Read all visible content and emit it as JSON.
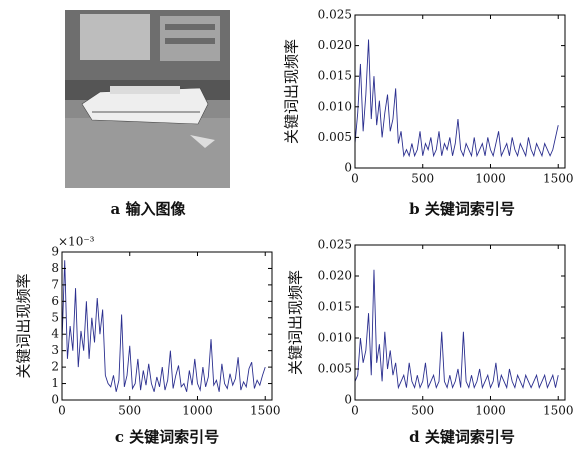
{
  "chart_data": [
    {
      "type": "image",
      "caption": "a 输入图像"
    },
    {
      "type": "line",
      "caption": "b 关键词索引号",
      "ylabel": "关键词出现频率",
      "xlim": [
        0,
        1550
      ],
      "xticks": [
        0,
        500,
        1000,
        1500
      ],
      "ylim": [
        0,
        0.025
      ],
      "yticks": [
        0,
        0.005,
        {
          "value": 0.01,
          "label": "0.010"
        },
        0.015,
        {
          "value": 0.02,
          "label": "0.020"
        },
        0.025
      ],
      "series": [
        {
          "color": "#2b2f8f",
          "x": [
            0,
            20,
            40,
            60,
            80,
            100,
            120,
            140,
            160,
            180,
            200,
            220,
            240,
            260,
            280,
            300,
            320,
            340,
            360,
            380,
            400,
            420,
            440,
            460,
            480,
            500,
            520,
            540,
            560,
            580,
            600,
            620,
            640,
            660,
            680,
            700,
            720,
            740,
            760,
            780,
            800,
            820,
            840,
            860,
            880,
            900,
            920,
            940,
            960,
            980,
            1000,
            1020,
            1040,
            1060,
            1080,
            1100,
            1120,
            1140,
            1160,
            1180,
            1200,
            1220,
            1240,
            1260,
            1280,
            1300,
            1320,
            1340,
            1360,
            1380,
            1400,
            1420,
            1440,
            1460,
            1480,
            1500
          ],
          "values": [
            0.004,
            0.009,
            0.017,
            0.006,
            0.012,
            0.021,
            0.008,
            0.015,
            0.007,
            0.011,
            0.005,
            0.009,
            0.012,
            0.006,
            0.008,
            0.013,
            0.004,
            0.006,
            0.002,
            0.003,
            0.002,
            0.004,
            0.002,
            0.003,
            0.006,
            0.002,
            0.004,
            0.003,
            0.005,
            0.002,
            0.003,
            0.006,
            0.002,
            0.004,
            0.003,
            0.005,
            0.002,
            0.004,
            0.008,
            0.003,
            0.002,
            0.004,
            0.003,
            0.002,
            0.005,
            0.002,
            0.003,
            0.004,
            0.002,
            0.005,
            0.003,
            0.002,
            0.004,
            0.006,
            0.002,
            0.003,
            0.004,
            0.002,
            0.005,
            0.003,
            0.002,
            0.004,
            0.003,
            0.002,
            0.005,
            0.003,
            0.002,
            0.004,
            0.003,
            0.002,
            0.004,
            0.003,
            0.002,
            0.003,
            0.005,
            0.007
          ]
        }
      ]
    },
    {
      "type": "line",
      "caption": "c 关键词索引号",
      "ylabel": "关键词出现频率",
      "multiplier": "×10⁻³",
      "xlim": [
        0,
        1550
      ],
      "xticks": [
        0,
        500,
        1000,
        1500
      ],
      "ylim": [
        0,
        9
      ],
      "yticks": [
        0,
        1,
        2,
        3,
        4,
        5,
        6,
        7,
        8,
        9
      ],
      "series": [
        {
          "color": "#2b2f8f",
          "x": [
            0,
            20,
            40,
            60,
            80,
            100,
            120,
            140,
            160,
            180,
            200,
            220,
            240,
            260,
            280,
            300,
            320,
            340,
            360,
            380,
            400,
            420,
            440,
            460,
            480,
            500,
            520,
            540,
            560,
            580,
            600,
            620,
            640,
            660,
            680,
            700,
            720,
            740,
            760,
            780,
            800,
            820,
            840,
            860,
            880,
            900,
            920,
            940,
            960,
            980,
            1000,
            1020,
            1040,
            1060,
            1080,
            1100,
            1120,
            1140,
            1160,
            1180,
            1200,
            1220,
            1240,
            1260,
            1280,
            1300,
            1320,
            1340,
            1360,
            1380,
            1400,
            1420,
            1440,
            1460,
            1480,
            1500
          ],
          "values": [
            3.5,
            8.5,
            2.5,
            4.5,
            3.0,
            6.8,
            2.0,
            4.2,
            3.0,
            6.0,
            2.5,
            5.0,
            3.5,
            6.2,
            4.0,
            5.5,
            1.5,
            1.0,
            0.8,
            1.5,
            0.5,
            1.2,
            5.2,
            0.8,
            1.5,
            3.3,
            0.7,
            1.0,
            2.5,
            0.6,
            1.8,
            0.9,
            2.2,
            1.0,
            0.5,
            1.4,
            0.8,
            2.0,
            0.6,
            1.2,
            3.0,
            0.7,
            1.5,
            2.1,
            0.8,
            1.0,
            0.5,
            1.8,
            0.9,
            2.5,
            1.0,
            0.6,
            2.0,
            0.8,
            1.4,
            3.7,
            0.9,
            1.2,
            0.5,
            2.2,
            1.0,
            0.7,
            1.6,
            0.9,
            1.3,
            2.6,
            0.6,
            1.1,
            0.8,
            1.9,
            2.3,
            0.7,
            1.2,
            0.9,
            1.5,
            2.0
          ]
        }
      ]
    },
    {
      "type": "line",
      "caption": "d 关键词索引号",
      "ylabel": "关键词出现频率",
      "xlim": [
        0,
        1550
      ],
      "xticks": [
        0,
        500,
        1000,
        1500
      ],
      "ylim": [
        0,
        0.025
      ],
      "yticks": [
        0,
        0.005,
        {
          "value": 0.01,
          "label": "0.010"
        },
        0.015,
        {
          "value": 0.02,
          "label": "0.020"
        },
        0.025
      ],
      "series": [
        {
          "color": "#2b2f8f",
          "x": [
            0,
            20,
            40,
            60,
            80,
            100,
            120,
            140,
            160,
            180,
            200,
            220,
            240,
            260,
            280,
            300,
            320,
            340,
            360,
            380,
            400,
            420,
            440,
            460,
            480,
            500,
            520,
            540,
            560,
            580,
            600,
            620,
            640,
            660,
            680,
            700,
            720,
            740,
            760,
            780,
            800,
            820,
            840,
            860,
            880,
            900,
            920,
            940,
            960,
            980,
            1000,
            1020,
            1040,
            1060,
            1080,
            1100,
            1120,
            1140,
            1160,
            1180,
            1200,
            1220,
            1240,
            1260,
            1280,
            1300,
            1320,
            1340,
            1360,
            1380,
            1400,
            1420,
            1440,
            1460,
            1480,
            1500
          ],
          "values": [
            0.003,
            0.004,
            0.01,
            0.006,
            0.008,
            0.014,
            0.004,
            0.021,
            0.006,
            0.009,
            0.003,
            0.011,
            0.005,
            0.008,
            0.004,
            0.006,
            0.002,
            0.003,
            0.004,
            0.002,
            0.006,
            0.003,
            0.002,
            0.004,
            0.002,
            0.003,
            0.006,
            0.002,
            0.003,
            0.004,
            0.002,
            0.003,
            0.011,
            0.003,
            0.002,
            0.004,
            0.002,
            0.003,
            0.005,
            0.002,
            0.011,
            0.003,
            0.002,
            0.004,
            0.002,
            0.003,
            0.005,
            0.002,
            0.003,
            0.004,
            0.002,
            0.003,
            0.006,
            0.002,
            0.004,
            0.003,
            0.002,
            0.005,
            0.003,
            0.002,
            0.004,
            0.003,
            0.002,
            0.004,
            0.003,
            0.002,
            0.003,
            0.004,
            0.002,
            0.003,
            0.004,
            0.002,
            0.003,
            0.004,
            0.002,
            0.004
          ]
        }
      ]
    }
  ]
}
